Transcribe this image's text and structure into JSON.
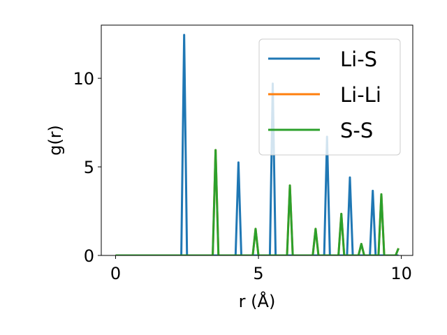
{
  "chart_data": {
    "type": "line",
    "title": "",
    "xlabel": "r (Å)",
    "ylabel": "g(r)",
    "xlim": [
      -0.5,
      10.4
    ],
    "ylim": [
      0,
      13
    ],
    "xticks": [
      0,
      5,
      10
    ],
    "yticks": [
      0,
      5,
      10
    ],
    "grid": false,
    "legend_position": "upper right",
    "series": [
      {
        "name": "Li-S",
        "color": "#1f77b4",
        "peaks": [
          [
            2.4,
            12.45
          ],
          [
            4.3,
            5.25
          ],
          [
            5.5,
            9.7
          ],
          [
            7.4,
            6.7
          ],
          [
            8.2,
            4.4
          ],
          [
            9.0,
            3.65
          ]
        ]
      },
      {
        "name": "Li-Li",
        "color": "#ff7f0e",
        "peaks": [
          [
            3.5,
            5.95
          ],
          [
            4.9,
            1.5
          ],
          [
            6.1,
            3.95
          ],
          [
            7.0,
            1.5
          ],
          [
            7.9,
            2.35
          ],
          [
            8.6,
            0.65
          ],
          [
            9.3,
            3.45
          ],
          [
            9.9,
            0.4
          ]
        ]
      },
      {
        "name": "S-S",
        "color": "#2ca02c",
        "peaks": [
          [
            3.5,
            5.95
          ],
          [
            4.9,
            1.5
          ],
          [
            6.1,
            3.95
          ],
          [
            7.0,
            1.5
          ],
          [
            7.9,
            2.35
          ],
          [
            8.6,
            0.65
          ],
          [
            9.3,
            3.45
          ],
          [
            9.9,
            0.4
          ]
        ]
      }
    ],
    "r_max": 9.9,
    "peak_halfwidth": 0.1
  }
}
